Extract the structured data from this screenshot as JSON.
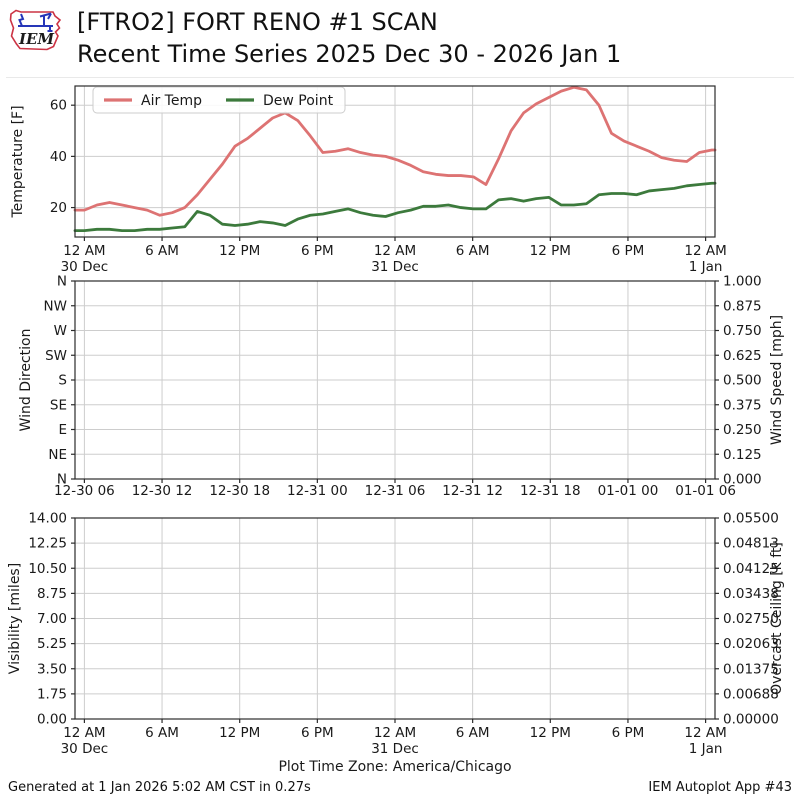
{
  "header": {
    "logo_text": "IEM",
    "title_line1": "[FTRO2] FORT RENO #1 SCAN",
    "title_line2": "Recent Time Series 2025 Dec 30 - 2026 Jan 1"
  },
  "footer": {
    "generated": "Generated at 1 Jan 2026 5:02 AM CST in 0.27s",
    "app": "IEM Autoplot App #43"
  },
  "colors": {
    "air_temp": "#dd7373",
    "dew_point": "#3c7a3c",
    "grid": "#cdcdcd",
    "frame": "#2b2b2b",
    "overcast_label": "#008000"
  },
  "chart_data": [
    {
      "id": "temperature",
      "type": "line",
      "ylabel": "Temperature [F]",
      "ylim": [
        8.5,
        67.5
      ],
      "yticks": [
        {
          "v": 20,
          "label": "20"
        },
        {
          "v": 40,
          "label": "40"
        },
        {
          "v": 60,
          "label": "60"
        }
      ],
      "xlim_hours": [
        -0.75,
        50.25
      ],
      "xtick_step_hours": 6,
      "xticks": [
        {
          "label": "12 AM",
          "date": "30 Dec"
        },
        {
          "label": "6 AM"
        },
        {
          "label": "12 PM"
        },
        {
          "label": "6 PM"
        },
        {
          "label": "12 AM",
          "date": "31 Dec"
        },
        {
          "label": "6 AM"
        },
        {
          "label": "12 PM"
        },
        {
          "label": "6 PM"
        },
        {
          "label": "12 AM",
          "date": "1 Jan"
        }
      ],
      "grid": true,
      "legend": {
        "position": "upper left",
        "entries": [
          "Air Temp",
          "Dew Point"
        ]
      },
      "series": [
        {
          "name": "Air Temp",
          "color": "#dd7373",
          "x_start_hour": 0,
          "x_step_hours": 1,
          "values": [
            19,
            21,
            22,
            21,
            20,
            19,
            17,
            18,
            20,
            25,
            31,
            37,
            44,
            47,
            51,
            55,
            57,
            54,
            48,
            41.5,
            42,
            43,
            41.5,
            40.5,
            40,
            38.5,
            36.5,
            34,
            33,
            32.5,
            32.5,
            32,
            29,
            39,
            50,
            57,
            60.5,
            63,
            65.5,
            67,
            66,
            60,
            49,
            46,
            44,
            42,
            39.5,
            38.5,
            38,
            41.5,
            42.5
          ]
        },
        {
          "name": "Dew Point",
          "color": "#3c7a3c",
          "x_start_hour": 0,
          "x_step_hours": 1,
          "values": [
            11,
            11.5,
            11.5,
            11,
            11,
            11.5,
            11.5,
            12,
            12.5,
            18.5,
            17,
            13.5,
            13,
            13.5,
            14.5,
            14,
            13,
            15.5,
            17,
            17.5,
            18.5,
            19.5,
            18,
            17,
            16.5,
            18,
            19,
            20.5,
            20.5,
            21,
            20,
            19.5,
            19.5,
            23,
            23.5,
            22.5,
            23.5,
            24,
            21,
            21,
            21.5,
            25,
            25.5,
            25.5,
            25,
            26.5,
            27,
            27.5,
            28.5,
            29,
            29.5
          ]
        }
      ]
    },
    {
      "id": "wind",
      "type": "line",
      "ylabel": "Wind Direction",
      "y2label": "Wind Speed [mph]",
      "y2label_color": "#1a1a1a",
      "yticks": [
        "N",
        "NW",
        "W",
        "SW",
        "S",
        "SE",
        "E",
        "NE",
        "N"
      ],
      "y2ticks": [
        "1.000",
        "0.875",
        "0.750",
        "0.625",
        "0.500",
        "0.375",
        "0.250",
        "0.125",
        "0.000"
      ],
      "xticks": [
        {
          "label": "12-30 06"
        },
        {
          "label": "12-30 12"
        },
        {
          "label": "12-30 18"
        },
        {
          "label": "12-31 00"
        },
        {
          "label": "12-31 06"
        },
        {
          "label": "12-31 12"
        },
        {
          "label": "12-31 18"
        },
        {
          "label": "01-01 00"
        },
        {
          "label": "01-01 06"
        }
      ],
      "grid": true,
      "series": []
    },
    {
      "id": "visibility",
      "type": "line",
      "ylabel": "Visibility [miles]",
      "y2label": "Overcast Ceiling [k ft]",
      "y2label_color": "#008000",
      "yticks": [
        "14.00",
        "12.25",
        "10.50",
        "8.75",
        "7.00",
        "5.25",
        "3.50",
        "1.75",
        "0.00"
      ],
      "y2ticks": [
        "0.05500",
        "0.04813",
        "0.04125",
        "0.03438",
        "0.02750",
        "0.02063",
        "0.01375",
        "0.00688",
        "0.00000"
      ],
      "xticks": [
        {
          "label": "12 AM",
          "date": "30 Dec"
        },
        {
          "label": "6 AM"
        },
        {
          "label": "12 PM"
        },
        {
          "label": "6 PM"
        },
        {
          "label": "12 AM",
          "date": "31 Dec"
        },
        {
          "label": "6 AM"
        },
        {
          "label": "12 PM"
        },
        {
          "label": "6 PM"
        },
        {
          "label": "12 AM",
          "date": "1 Jan"
        }
      ],
      "note": "Plot Time Zone: America/Chicago",
      "grid": true,
      "series": []
    }
  ]
}
